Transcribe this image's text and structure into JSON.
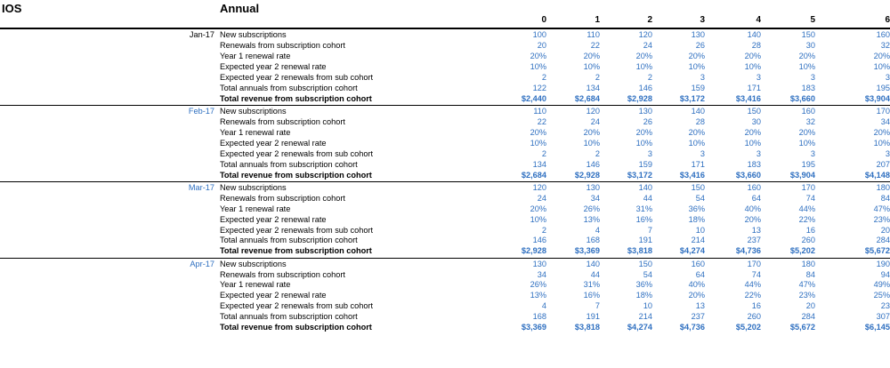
{
  "header": {
    "title": "IOS",
    "subtitle": "Annual"
  },
  "columns": [
    "0",
    "1",
    "2",
    "3",
    "4",
    "5",
    "6"
  ],
  "row_labels": [
    "New subscriptions",
    "Renewals from subscription cohort",
    "Year 1 renewal rate",
    "Expected year 2 renewal rate",
    "Expected year 2 renewals from sub cohort",
    "Total annuals from subscription cohort",
    "Total revenue from subscription cohort"
  ],
  "cohorts": [
    {
      "month": "Jan-17",
      "rows": [
        [
          "100",
          "110",
          "120",
          "130",
          "140",
          "150",
          "160"
        ],
        [
          "20",
          "22",
          "24",
          "26",
          "28",
          "30",
          "32"
        ],
        [
          "20%",
          "20%",
          "20%",
          "20%",
          "20%",
          "20%",
          "20%"
        ],
        [
          "10%",
          "10%",
          "10%",
          "10%",
          "10%",
          "10%",
          "10%"
        ],
        [
          "2",
          "2",
          "2",
          "3",
          "3",
          "3",
          "3"
        ],
        [
          "122",
          "134",
          "146",
          "159",
          "171",
          "183",
          "195"
        ],
        [
          "$2,440",
          "$2,684",
          "$2,928",
          "$3,172",
          "$3,416",
          "$3,660",
          "$3,904"
        ]
      ]
    },
    {
      "month": "Feb-17",
      "rows": [
        [
          "110",
          "120",
          "130",
          "140",
          "150",
          "160",
          "170"
        ],
        [
          "22",
          "24",
          "26",
          "28",
          "30",
          "32",
          "34"
        ],
        [
          "20%",
          "20%",
          "20%",
          "20%",
          "20%",
          "20%",
          "20%"
        ],
        [
          "10%",
          "10%",
          "10%",
          "10%",
          "10%",
          "10%",
          "10%"
        ],
        [
          "2",
          "2",
          "3",
          "3",
          "3",
          "3",
          "3"
        ],
        [
          "134",
          "146",
          "159",
          "171",
          "183",
          "195",
          "207"
        ],
        [
          "$2,684",
          "$2,928",
          "$3,172",
          "$3,416",
          "$3,660",
          "$3,904",
          "$4,148"
        ]
      ]
    },
    {
      "month": "Mar-17",
      "rows": [
        [
          "120",
          "130",
          "140",
          "150",
          "160",
          "170",
          "180"
        ],
        [
          "24",
          "34",
          "44",
          "54",
          "64",
          "74",
          "84"
        ],
        [
          "20%",
          "26%",
          "31%",
          "36%",
          "40%",
          "44%",
          "47%"
        ],
        [
          "10%",
          "13%",
          "16%",
          "18%",
          "20%",
          "22%",
          "23%"
        ],
        [
          "2",
          "4",
          "7",
          "10",
          "13",
          "16",
          "20"
        ],
        [
          "146",
          "168",
          "191",
          "214",
          "237",
          "260",
          "284"
        ],
        [
          "$2,928",
          "$3,369",
          "$3,818",
          "$4,274",
          "$4,736",
          "$5,202",
          "$5,672"
        ]
      ]
    },
    {
      "month": "Apr-17",
      "rows": [
        [
          "130",
          "140",
          "150",
          "160",
          "170",
          "180",
          "190"
        ],
        [
          "34",
          "44",
          "54",
          "64",
          "74",
          "84",
          "94"
        ],
        [
          "26%",
          "31%",
          "36%",
          "40%",
          "44%",
          "47%",
          "49%"
        ],
        [
          "13%",
          "16%",
          "18%",
          "20%",
          "22%",
          "23%",
          "25%"
        ],
        [
          "4",
          "7",
          "10",
          "13",
          "16",
          "20",
          "23"
        ],
        [
          "168",
          "191",
          "214",
          "237",
          "260",
          "284",
          "307"
        ],
        [
          "$3,369",
          "$3,818",
          "$4,274",
          "$4,736",
          "$5,202",
          "$5,672",
          "$6,145"
        ]
      ]
    }
  ],
  "colors": {
    "value_blue": "#2e6fc0",
    "label_black": "#000000",
    "line": "#000000"
  }
}
